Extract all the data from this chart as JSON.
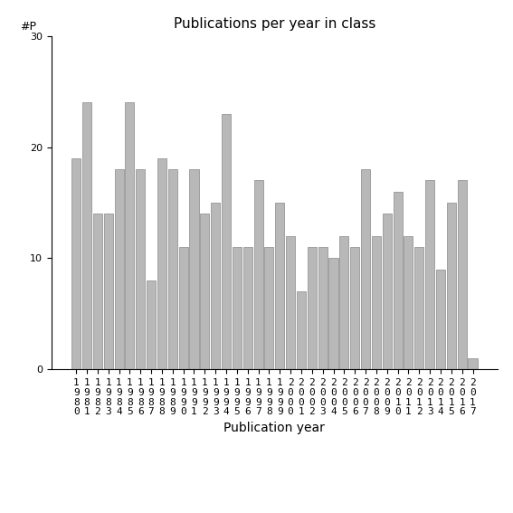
{
  "title": "Publications per year in class",
  "xlabel": "Publication year",
  "ylabel": "#P",
  "years": [
    1980,
    1981,
    1982,
    1983,
    1984,
    1985,
    1986,
    1987,
    1988,
    1989,
    1990,
    1991,
    1992,
    1993,
    1994,
    1995,
    1996,
    1997,
    1998,
    1999,
    2000,
    2001,
    2002,
    2003,
    2004,
    2005,
    2006,
    2007,
    2008,
    2009,
    2010,
    2011,
    2012,
    2013,
    2014,
    2015,
    2016,
    2017
  ],
  "values": [
    19,
    24,
    14,
    14,
    18,
    24,
    18,
    8,
    19,
    18,
    11,
    18,
    14,
    15,
    23,
    11,
    11,
    17,
    11,
    15,
    12,
    7,
    11,
    11,
    10,
    12,
    11,
    18,
    12,
    14,
    16,
    12,
    11,
    17,
    9,
    15,
    17,
    1
  ],
  "bar_color": "#b8b8b8",
  "bar_edge_color": "#888888",
  "ylim": [
    0,
    30
  ],
  "yticks": [
    0,
    10,
    20,
    30
  ],
  "bg_color": "#ffffff",
  "title_fontsize": 11,
  "axis_label_fontsize": 10,
  "tick_fontsize": 8
}
